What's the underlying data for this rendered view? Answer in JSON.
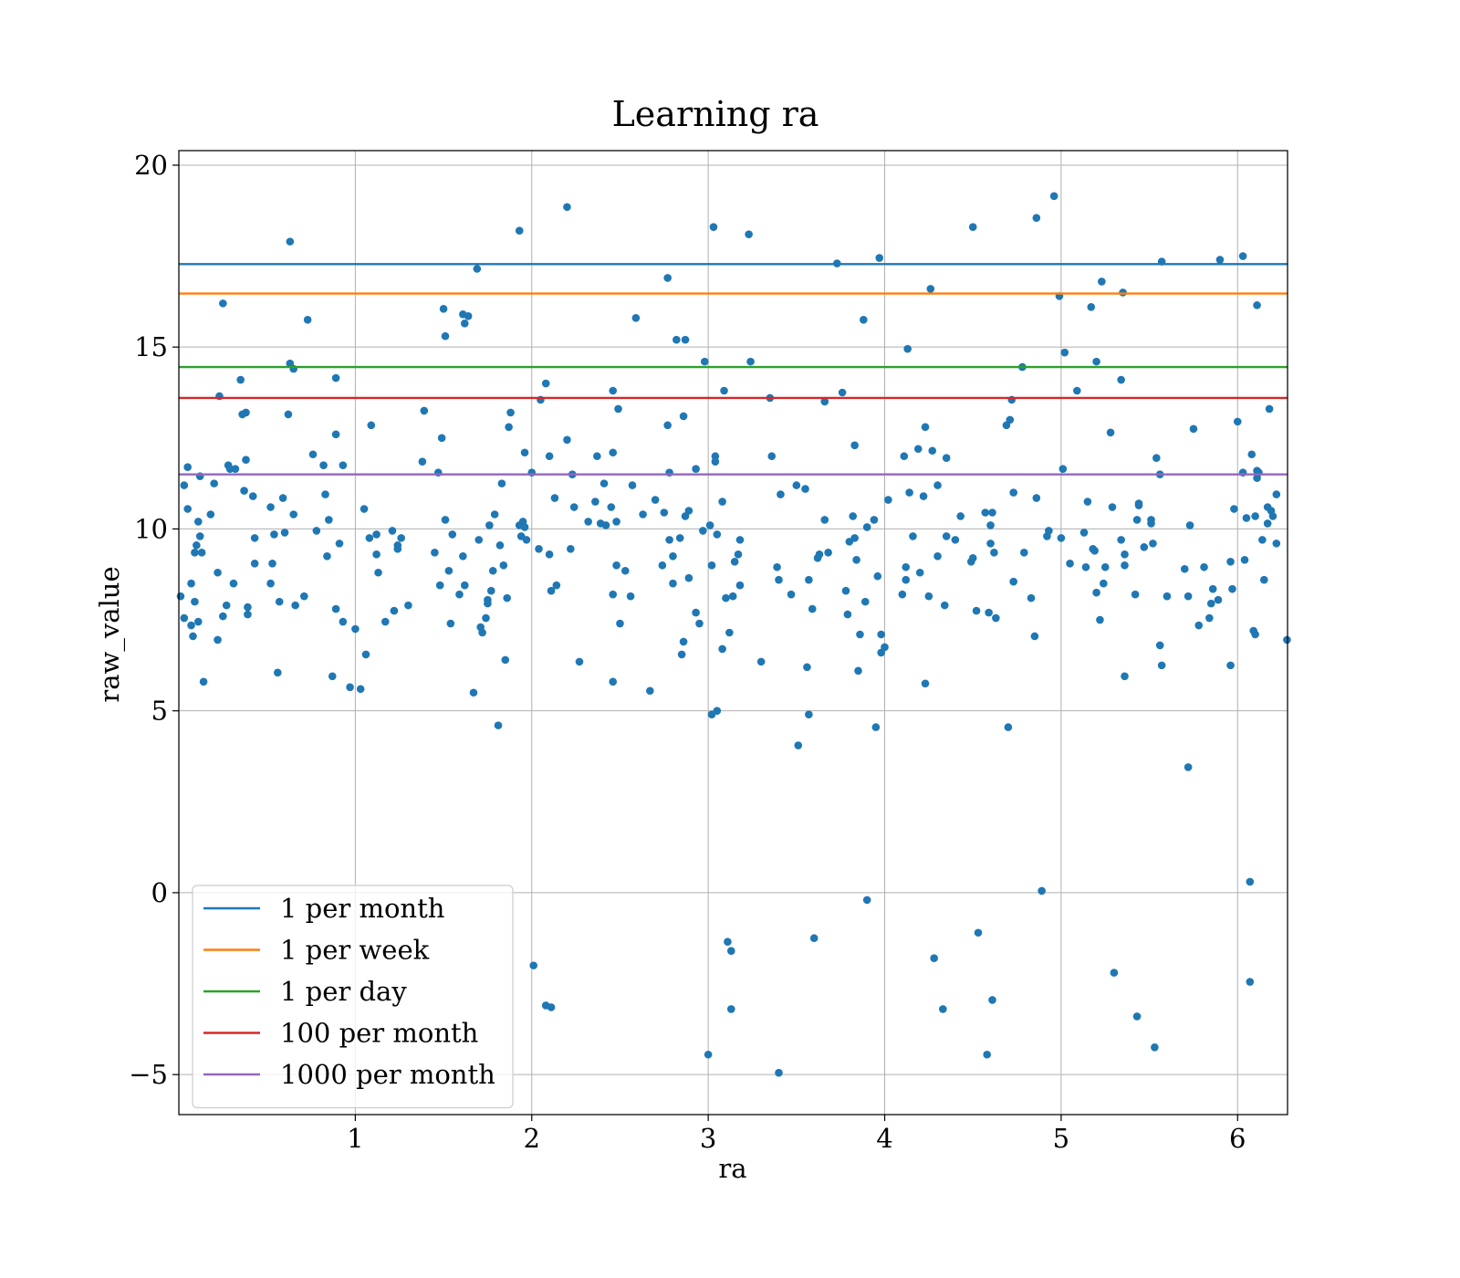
{
  "chart_data": {
    "type": "scatter",
    "title": "Learning ra",
    "xlabel": "ra",
    "ylabel": "raw_value",
    "xlim": [
      0,
      6.283
    ],
    "ylim": [
      -6.1,
      20.4
    ],
    "xticks": [
      1,
      2,
      3,
      4,
      5,
      6
    ],
    "yticks": [
      -5,
      0,
      5,
      10,
      15,
      20
    ],
    "xtick_labels": [
      "1",
      "2",
      "3",
      "4",
      "5",
      "6"
    ],
    "ytick_labels": [
      "−5",
      "0",
      "5",
      "10",
      "15",
      "20"
    ],
    "grid": true,
    "legend_position": "lower-left",
    "point_color": "#1f77b4",
    "hlines": [
      {
        "name": "1 per month",
        "y": 17.28,
        "color": "#1f77b4"
      },
      {
        "name": "1 per week",
        "y": 16.47,
        "color": "#ff7f0e"
      },
      {
        "name": "1 per day",
        "y": 14.45,
        "color": "#2ca02c"
      },
      {
        "name": "100 per month",
        "y": 13.6,
        "color": "#d62728"
      },
      {
        "name": "1000 per month",
        "y": 11.5,
        "color": "#9467bd"
      }
    ],
    "points": [
      [
        0.01,
        8.15
      ],
      [
        0.03,
        7.55
      ],
      [
        0.03,
        11.2
      ],
      [
        0.05,
        10.55
      ],
      [
        0.05,
        11.7
      ],
      [
        0.07,
        8.5
      ],
      [
        0.07,
        7.35
      ],
      [
        0.08,
        7.05
      ],
      [
        0.09,
        9.35
      ],
      [
        0.09,
        8.0
      ],
      [
        0.1,
        9.55
      ],
      [
        0.11,
        7.45
      ],
      [
        0.11,
        10.2
      ],
      [
        0.12,
        9.8
      ],
      [
        0.12,
        11.45
      ],
      [
        0.13,
        9.35
      ],
      [
        0.14,
        5.8
      ],
      [
        0.18,
        10.4
      ],
      [
        0.2,
        11.25
      ],
      [
        0.22,
        6.95
      ],
      [
        0.22,
        8.8
      ],
      [
        0.23,
        13.65
      ],
      [
        0.25,
        16.2
      ],
      [
        0.25,
        7.6
      ],
      [
        0.27,
        7.9
      ],
      [
        0.28,
        11.75
      ],
      [
        0.29,
        11.65
      ],
      [
        0.31,
        8.5
      ],
      [
        0.32,
        11.65
      ],
      [
        0.35,
        14.1
      ],
      [
        0.36,
        13.15
      ],
      [
        0.37,
        11.05
      ],
      [
        0.38,
        11.9
      ],
      [
        0.38,
        13.2
      ],
      [
        0.39,
        7.85
      ],
      [
        0.39,
        7.65
      ],
      [
        0.42,
        10.9
      ],
      [
        0.43,
        9.75
      ],
      [
        0.43,
        9.05
      ],
      [
        0.52,
        10.6
      ],
      [
        0.52,
        8.5
      ],
      [
        0.53,
        9.05
      ],
      [
        0.54,
        9.85
      ],
      [
        0.56,
        6.05
      ],
      [
        0.57,
        8.0
      ],
      [
        0.59,
        10.85
      ],
      [
        0.6,
        9.9
      ],
      [
        0.62,
        13.15
      ],
      [
        0.63,
        17.9
      ],
      [
        0.63,
        14.55
      ],
      [
        0.65,
        14.4
      ],
      [
        0.65,
        10.4
      ],
      [
        0.66,
        7.9
      ],
      [
        0.71,
        8.15
      ],
      [
        0.73,
        15.75
      ],
      [
        0.76,
        12.05
      ],
      [
        0.78,
        9.95
      ],
      [
        0.82,
        11.75
      ],
      [
        0.83,
        10.95
      ],
      [
        0.84,
        9.25
      ],
      [
        0.85,
        10.25
      ],
      [
        0.87,
        5.95
      ],
      [
        0.89,
        12.6
      ],
      [
        0.89,
        14.15
      ],
      [
        0.89,
        7.8
      ],
      [
        0.91,
        9.6
      ],
      [
        0.93,
        11.75
      ],
      [
        0.93,
        7.45
      ],
      [
        0.97,
        5.65
      ],
      [
        1.0,
        7.25
      ],
      [
        1.03,
        5.6
      ],
      [
        1.05,
        10.55
      ],
      [
        1.06,
        6.55
      ],
      [
        1.08,
        9.75
      ],
      [
        1.09,
        12.85
      ],
      [
        1.12,
        9.85
      ],
      [
        1.12,
        9.3
      ],
      [
        1.13,
        8.8
      ],
      [
        1.17,
        7.45
      ],
      [
        1.21,
        9.95
      ],
      [
        1.22,
        7.75
      ],
      [
        1.24,
        9.55
      ],
      [
        1.24,
        9.45
      ],
      [
        1.26,
        9.75
      ],
      [
        1.3,
        7.9
      ],
      [
        1.38,
        11.85
      ],
      [
        1.39,
        13.25
      ],
      [
        1.45,
        9.35
      ],
      [
        1.47,
        11.55
      ],
      [
        1.48,
        8.45
      ],
      [
        1.49,
        12.5
      ],
      [
        1.5,
        16.05
      ],
      [
        1.51,
        15.3
      ],
      [
        1.51,
        10.25
      ],
      [
        1.53,
        8.85
      ],
      [
        1.54,
        7.4
      ],
      [
        1.55,
        9.85
      ],
      [
        1.59,
        8.2
      ],
      [
        1.61,
        9.25
      ],
      [
        1.61,
        15.9
      ],
      [
        1.62,
        15.65
      ],
      [
        1.62,
        8.45
      ],
      [
        1.64,
        15.85
      ],
      [
        1.67,
        5.5
      ],
      [
        1.69,
        17.15
      ],
      [
        1.7,
        9.7
      ],
      [
        1.71,
        7.3
      ],
      [
        1.72,
        7.15
      ],
      [
        1.74,
        7.55
      ],
      [
        1.75,
        8.05
      ],
      [
        1.75,
        7.95
      ],
      [
        1.76,
        10.1
      ],
      [
        1.77,
        8.3
      ],
      [
        1.78,
        8.85
      ],
      [
        1.79,
        10.4
      ],
      [
        1.81,
        4.6
      ],
      [
        1.82,
        9.55
      ],
      [
        1.83,
        11.25
      ],
      [
        1.84,
        9.0
      ],
      [
        1.85,
        6.4
      ],
      [
        1.86,
        8.1
      ],
      [
        1.87,
        12.8
      ],
      [
        1.88,
        13.2
      ],
      [
        1.93,
        18.2
      ],
      [
        1.93,
        10.1
      ],
      [
        1.94,
        9.8
      ],
      [
        1.95,
        10.2
      ],
      [
        1.96,
        12.1
      ],
      [
        1.96,
        10.05
      ],
      [
        1.97,
        9.7
      ],
      [
        2.0,
        11.55
      ],
      [
        2.04,
        9.45
      ],
      [
        2.05,
        13.55
      ],
      [
        2.08,
        14.0
      ],
      [
        2.1,
        12.0
      ],
      [
        2.1,
        9.3
      ],
      [
        2.11,
        8.3
      ],
      [
        2.13,
        10.85
      ],
      [
        2.14,
        8.45
      ],
      [
        2.2,
        18.85
      ],
      [
        2.2,
        12.45
      ],
      [
        2.22,
        9.45
      ],
      [
        2.23,
        11.5
      ],
      [
        2.24,
        10.6
      ],
      [
        2.27,
        6.35
      ],
      [
        2.32,
        10.2
      ],
      [
        2.36,
        10.75
      ],
      [
        2.37,
        12.0
      ],
      [
        2.39,
        10.15
      ],
      [
        2.41,
        11.25
      ],
      [
        2.42,
        10.1
      ],
      [
        2.45,
        10.6
      ],
      [
        2.46,
        12.1
      ],
      [
        2.46,
        13.8
      ],
      [
        2.46,
        8.2
      ],
      [
        2.46,
        5.8
      ],
      [
        2.48,
        10.2
      ],
      [
        2.48,
        9.0
      ],
      [
        2.49,
        13.3
      ],
      [
        2.5,
        7.4
      ],
      [
        2.53,
        8.85
      ],
      [
        2.56,
        8.15
      ],
      [
        2.57,
        11.2
      ],
      [
        2.59,
        15.8
      ],
      [
        2.63,
        10.4
      ],
      [
        2.67,
        5.55
      ],
      [
        2.7,
        10.8
      ],
      [
        2.74,
        9.0
      ],
      [
        2.75,
        10.45
      ],
      [
        2.77,
        16.9
      ],
      [
        2.77,
        12.85
      ],
      [
        2.78,
        11.55
      ],
      [
        2.78,
        9.7
      ],
      [
        2.8,
        9.25
      ],
      [
        2.8,
        8.5
      ],
      [
        2.82,
        15.2
      ],
      [
        2.84,
        9.75
      ],
      [
        2.85,
        6.55
      ],
      [
        2.86,
        6.9
      ],
      [
        2.86,
        13.1
      ],
      [
        2.87,
        10.35
      ],
      [
        2.87,
        15.2
      ],
      [
        2.89,
        10.5
      ],
      [
        2.89,
        8.65
      ],
      [
        2.93,
        11.65
      ],
      [
        2.93,
        7.7
      ],
      [
        2.95,
        7.4
      ],
      [
        2.97,
        9.95
      ],
      [
        2.98,
        14.6
      ],
      [
        3.01,
        10.1
      ],
      [
        3.02,
        4.9
      ],
      [
        3.02,
        9.0
      ],
      [
        3.03,
        18.3
      ],
      [
        3.04,
        12.0
      ],
      [
        3.04,
        11.85
      ],
      [
        3.05,
        5.0
      ],
      [
        3.05,
        9.85
      ],
      [
        3.08,
        10.75
      ],
      [
        3.08,
        6.7
      ],
      [
        3.09,
        13.8
      ],
      [
        3.1,
        8.1
      ],
      [
        3.12,
        7.15
      ],
      [
        3.14,
        8.15
      ],
      [
        3.15,
        9.1
      ],
      [
        3.17,
        9.3
      ],
      [
        3.18,
        9.7
      ],
      [
        3.18,
        8.45
      ],
      [
        3.23,
        18.1
      ],
      [
        3.24,
        14.6
      ],
      [
        3.3,
        6.35
      ],
      [
        3.35,
        13.6
      ],
      [
        3.36,
        12.0
      ],
      [
        3.39,
        8.95
      ],
      [
        3.4,
        8.6
      ],
      [
        3.41,
        10.95
      ],
      [
        3.47,
        8.2
      ],
      [
        3.5,
        11.2
      ],
      [
        3.51,
        4.05
      ],
      [
        3.55,
        11.1
      ],
      [
        3.56,
        6.2
      ],
      [
        3.57,
        8.6
      ],
      [
        3.57,
        4.9
      ],
      [
        3.59,
        7.8
      ],
      [
        3.62,
        9.2
      ],
      [
        3.63,
        9.3
      ],
      [
        3.66,
        13.5
      ],
      [
        3.66,
        10.25
      ],
      [
        3.68,
        9.35
      ],
      [
        3.73,
        17.3
      ],
      [
        3.76,
        13.75
      ],
      [
        3.78,
        8.3
      ],
      [
        3.79,
        7.65
      ],
      [
        3.8,
        9.65
      ],
      [
        3.82,
        10.35
      ],
      [
        3.83,
        12.3
      ],
      [
        3.83,
        9.75
      ],
      [
        3.84,
        9.15
      ],
      [
        3.85,
        6.1
      ],
      [
        3.86,
        7.1
      ],
      [
        3.88,
        15.75
      ],
      [
        3.89,
        8.0
      ],
      [
        3.9,
        10.05
      ],
      [
        3.94,
        10.25
      ],
      [
        3.95,
        4.55
      ],
      [
        3.96,
        8.7
      ],
      [
        3.97,
        17.45
      ],
      [
        3.98,
        6.6
      ],
      [
        3.98,
        7.1
      ],
      [
        4.0,
        6.75
      ],
      [
        4.02,
        10.8
      ],
      [
        4.1,
        8.2
      ],
      [
        4.11,
        12.0
      ],
      [
        4.12,
        8.6
      ],
      [
        4.12,
        8.95
      ],
      [
        4.13,
        14.95
      ],
      [
        4.14,
        11.0
      ],
      [
        4.16,
        9.8
      ],
      [
        4.19,
        12.2
      ],
      [
        4.2,
        8.8
      ],
      [
        4.22,
        10.9
      ],
      [
        4.23,
        12.8
      ],
      [
        4.23,
        5.75
      ],
      [
        4.25,
        8.15
      ],
      [
        4.26,
        16.6
      ],
      [
        4.27,
        12.15
      ],
      [
        4.3,
        11.2
      ],
      [
        4.3,
        9.25
      ],
      [
        4.34,
        7.9
      ],
      [
        4.35,
        11.95
      ],
      [
        4.35,
        9.8
      ],
      [
        4.4,
        9.7
      ],
      [
        4.43,
        10.35
      ],
      [
        4.49,
        9.1
      ],
      [
        4.5,
        9.2
      ],
      [
        4.5,
        18.3
      ],
      [
        4.52,
        7.75
      ],
      [
        4.57,
        10.45
      ],
      [
        4.59,
        7.7
      ],
      [
        4.6,
        10.1
      ],
      [
        4.6,
        9.6
      ],
      [
        4.61,
        10.45
      ],
      [
        4.62,
        9.35
      ],
      [
        4.63,
        7.55
      ],
      [
        4.69,
        12.85
      ],
      [
        4.7,
        4.55
      ],
      [
        4.71,
        13.0
      ],
      [
        4.72,
        13.55
      ],
      [
        4.73,
        11.0
      ],
      [
        4.73,
        8.55
      ],
      [
        4.78,
        14.45
      ],
      [
        4.79,
        9.35
      ],
      [
        4.83,
        8.1
      ],
      [
        4.85,
        7.05
      ],
      [
        4.86,
        10.85
      ],
      [
        4.86,
        18.55
      ],
      [
        4.89,
        0.05
      ],
      [
        4.92,
        9.8
      ],
      [
        4.93,
        9.95
      ],
      [
        4.96,
        19.15
      ],
      [
        4.99,
        16.4
      ],
      [
        5.0,
        9.75
      ],
      [
        5.01,
        11.65
      ],
      [
        5.02,
        14.85
      ],
      [
        5.05,
        9.05
      ],
      [
        5.09,
        13.8
      ],
      [
        5.13,
        9.9
      ],
      [
        5.14,
        8.95
      ],
      [
        5.15,
        10.75
      ],
      [
        5.17,
        16.1
      ],
      [
        5.18,
        9.45
      ],
      [
        5.19,
        9.4
      ],
      [
        5.2,
        14.6
      ],
      [
        5.2,
        8.25
      ],
      [
        5.22,
        7.5
      ],
      [
        5.23,
        16.8
      ],
      [
        5.24,
        8.5
      ],
      [
        5.25,
        8.95
      ],
      [
        5.28,
        12.65
      ],
      [
        5.29,
        10.6
      ],
      [
        5.34,
        14.1
      ],
      [
        5.34,
        9.7
      ],
      [
        5.35,
        16.5
      ],
      [
        5.36,
        9.3
      ],
      [
        5.36,
        9.0
      ],
      [
        5.36,
        5.95
      ],
      [
        5.42,
        8.2
      ],
      [
        5.43,
        10.25
      ],
      [
        5.44,
        10.65
      ],
      [
        5.44,
        10.7
      ],
      [
        5.47,
        9.5
      ],
      [
        5.51,
        10.15
      ],
      [
        5.51,
        10.25
      ],
      [
        5.52,
        9.6
      ],
      [
        5.54,
        11.95
      ],
      [
        5.56,
        11.5
      ],
      [
        5.56,
        6.8
      ],
      [
        5.57,
        6.25
      ],
      [
        5.57,
        17.35
      ],
      [
        5.6,
        8.15
      ],
      [
        5.7,
        8.9
      ],
      [
        5.72,
        8.15
      ],
      [
        5.72,
        3.45
      ],
      [
        5.73,
        10.1
      ],
      [
        5.75,
        12.75
      ],
      [
        5.78,
        7.35
      ],
      [
        5.81,
        8.95
      ],
      [
        5.84,
        7.55
      ],
      [
        5.85,
        7.95
      ],
      [
        5.86,
        8.35
      ],
      [
        5.89,
        8.05
      ],
      [
        5.9,
        17.4
      ],
      [
        5.96,
        9.1
      ],
      [
        5.96,
        6.25
      ],
      [
        5.97,
        8.35
      ],
      [
        5.98,
        10.55
      ],
      [
        6.0,
        12.95
      ],
      [
        6.03,
        11.55
      ],
      [
        6.03,
        17.5
      ],
      [
        6.04,
        9.15
      ],
      [
        6.05,
        10.3
      ],
      [
        6.08,
        12.05
      ],
      [
        6.09,
        7.2
      ],
      [
        6.1,
        7.1
      ],
      [
        6.1,
        10.35
      ],
      [
        6.11,
        11.6
      ],
      [
        6.11,
        11.4
      ],
      [
        6.11,
        16.15
      ],
      [
        6.12,
        11.55
      ],
      [
        6.14,
        9.7
      ],
      [
        6.15,
        8.6
      ],
      [
        6.17,
        10.6
      ],
      [
        6.17,
        10.15
      ],
      [
        6.18,
        13.3
      ],
      [
        6.19,
        10.5
      ],
      [
        6.2,
        10.35
      ],
      [
        6.22,
        10.95
      ],
      [
        6.22,
        9.6
      ],
      [
        6.28,
        6.95
      ],
      [
        6.07,
        0.3
      ],
      [
        6.07,
        -2.45
      ],
      [
        5.53,
        -4.25
      ],
      [
        5.43,
        -3.4
      ],
      [
        5.3,
        -2.2
      ],
      [
        4.61,
        -2.95
      ],
      [
        4.58,
        -4.45
      ],
      [
        4.53,
        -1.1
      ],
      [
        4.33,
        -3.2
      ],
      [
        4.28,
        -1.8
      ],
      [
        3.9,
        -0.2
      ],
      [
        3.6,
        -1.25
      ],
      [
        3.4,
        -4.95
      ],
      [
        3.13,
        -3.2
      ],
      [
        3.13,
        -1.6
      ],
      [
        3.11,
        -1.35
      ],
      [
        3.0,
        -4.45
      ],
      [
        2.11,
        -3.15
      ],
      [
        2.08,
        -3.1
      ],
      [
        2.01,
        -2.0
      ]
    ]
  }
}
